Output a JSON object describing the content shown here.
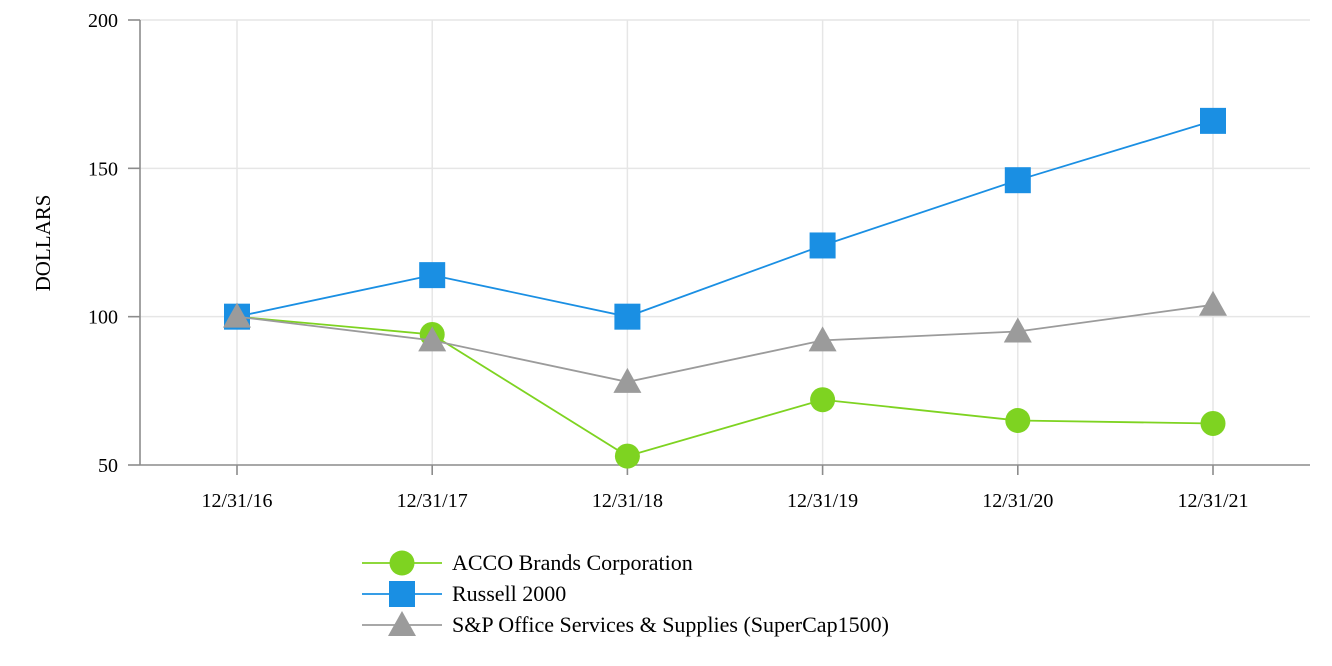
{
  "chart_data": {
    "type": "line",
    "title": "",
    "xlabel": "",
    "ylabel": "DOLLARS",
    "categories": [
      "12/31/16",
      "12/31/17",
      "12/31/18",
      "12/31/19",
      "12/31/20",
      "12/31/21"
    ],
    "ylim": [
      50,
      200
    ],
    "yticks": [
      50,
      100,
      150,
      200
    ],
    "grid": true,
    "legend_position": "bottom",
    "series": [
      {
        "name": "ACCO Brands Corporation",
        "values": [
          100,
          94,
          53,
          72,
          65,
          64
        ],
        "color": "#7ed321",
        "marker": "circle"
      },
      {
        "name": "Russell 2000",
        "values": [
          100,
          114,
          100,
          124,
          146,
          166
        ],
        "color": "#1a8fe3",
        "marker": "square"
      },
      {
        "name": "S&P Office Services & Supplies (SuperCap1500)",
        "values": [
          100,
          92,
          78,
          92,
          95,
          104
        ],
        "color": "#9b9b9b",
        "marker": "triangle"
      }
    ]
  }
}
